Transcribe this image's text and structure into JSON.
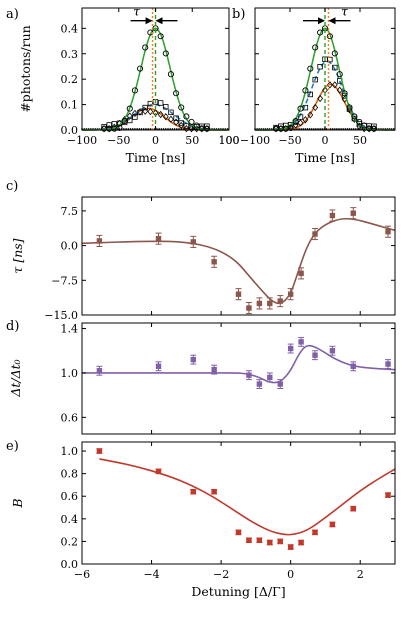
{
  "chart_data": [
    {
      "id": "a",
      "type": "line",
      "panel_label": "a)",
      "xlabel": "Time [ns]",
      "ylabel": "#photons/run",
      "xlim": [
        -100,
        100
      ],
      "ylim": [
        0,
        0.48
      ],
      "xticks": [
        -100,
        -50,
        0,
        50,
        100
      ],
      "yticks": [
        0.0,
        0.1,
        0.2,
        0.3,
        0.4
      ],
      "ytick_labels": [
        "0.0",
        "0.1",
        "0.2",
        "0.3",
        "0.4"
      ],
      "annotation": "τ",
      "vlines": [
        {
          "x": -4,
          "style": "dotted",
          "color": "#ff7f0e"
        },
        {
          "x": 0,
          "style": "dashed",
          "color": "#2ca02c"
        }
      ],
      "series": [
        {
          "marker": "o",
          "color": "#2ca02c",
          "fit": "gaussian",
          "amplitude": 0.4,
          "center": 0,
          "sigma": 20
        },
        {
          "marker": "s",
          "color": "#1f77b4",
          "fit": "gaussian",
          "amplitude": 0.1,
          "center": -2,
          "sigma": 27
        },
        {
          "marker": "D",
          "color": "#d95f02",
          "fit": "gaussian",
          "amplitude": 0.085,
          "center": -10,
          "sigma": 22
        }
      ]
    },
    {
      "id": "b",
      "type": "line",
      "panel_label": "b)",
      "xlabel": "Time [ns]",
      "ylabel": "",
      "xlim": [
        -100,
        100
      ],
      "ylim": [
        0,
        0.48
      ],
      "xticks": [
        -100,
        -50,
        0,
        50
      ],
      "yticks": [
        0.0,
        0.1,
        0.2,
        0.3,
        0.4
      ],
      "annotation": "τ",
      "vlines": [
        {
          "x": 0,
          "style": "dashed",
          "color": "#2ca02c"
        },
        {
          "x": 5,
          "style": "dotted",
          "color": "#ff7f0e"
        }
      ],
      "series": [
        {
          "marker": "o",
          "color": "#2ca02c",
          "fit": "gaussian",
          "amplitude": 0.4,
          "center": 0,
          "sigma": 20
        },
        {
          "marker": "s",
          "color": "#1f77b4",
          "fit": "gaussian",
          "amplitude": 0.27,
          "center": 3,
          "sigma": 22
        },
        {
          "marker": "D",
          "color": "#d95f02",
          "fit": "gaussian",
          "amplitude": 0.18,
          "center": 8,
          "sigma": 20
        }
      ]
    },
    {
      "id": "c",
      "type": "scatter",
      "panel_label": "c)",
      "ylabel": "τ [ns]",
      "xlim": [
        -6,
        3
      ],
      "ylim": [
        -15,
        10.5
      ],
      "yticks": [
        -15.0,
        -7.5,
        0.0,
        7.5
      ],
      "ytick_labels": [
        "−15.0",
        "−7.5",
        "0.0",
        "7.5"
      ],
      "color": "#8c564b",
      "x": [
        -5.5,
        -3.8,
        -2.8,
        -2.2,
        -1.5,
        -1.2,
        -0.9,
        -0.6,
        -0.3,
        0.0,
        0.3,
        0.7,
        1.2,
        1.8,
        2.8
      ],
      "y": [
        1.0,
        1.5,
        0.8,
        -3.5,
        -10.5,
        -13.5,
        -12.5,
        -12.5,
        -12.0,
        -10.5,
        -6.0,
        2.5,
        6.5,
        7.0,
        3.0
      ],
      "err": [
        1.2,
        1.2,
        1.2,
        1.2,
        1.2,
        1.2,
        1.2,
        1.2,
        1.2,
        1.2,
        1.2,
        1.2,
        1.2,
        1.2,
        1.2
      ],
      "fit": [
        [
          -6,
          0.5
        ],
        [
          -4,
          1.0
        ],
        [
          -3,
          0.8
        ],
        [
          -2.2,
          -0.5
        ],
        [
          -1.6,
          -3.0
        ],
        [
          -1.2,
          -6.5
        ],
        [
          -0.8,
          -10.0
        ],
        [
          -0.5,
          -12.3
        ],
        [
          -0.25,
          -12.6
        ],
        [
          0.0,
          -10.5
        ],
        [
          0.2,
          -6.0
        ],
        [
          0.45,
          -0.5
        ],
        [
          0.7,
          2.8
        ],
        [
          1.0,
          4.6
        ],
        [
          1.4,
          5.8
        ],
        [
          1.8,
          5.8
        ],
        [
          2.3,
          4.8
        ],
        [
          2.8,
          3.7
        ],
        [
          3,
          3.3
        ]
      ]
    },
    {
      "id": "d",
      "type": "scatter",
      "panel_label": "d)",
      "ylabel": "Δt/Δt₀",
      "xlim": [
        -6,
        3
      ],
      "ylim": [
        0.45,
        1.45
      ],
      "yticks": [
        0.6,
        1.0,
        1.4
      ],
      "ytick_labels": [
        "0.6",
        "1.0",
        "1.4"
      ],
      "color": "#8060a8",
      "x": [
        -5.5,
        -3.8,
        -2.8,
        -2.2,
        -1.2,
        -0.9,
        -0.6,
        -0.3,
        0.0,
        0.3,
        0.7,
        1.2,
        1.8,
        2.8
      ],
      "y": [
        1.02,
        1.06,
        1.12,
        1.03,
        0.98,
        0.9,
        0.96,
        0.9,
        1.22,
        1.28,
        1.16,
        1.2,
        1.06,
        1.08
      ],
      "err": [
        0.04,
        0.04,
        0.04,
        0.04,
        0.04,
        0.04,
        0.04,
        0.04,
        0.04,
        0.04,
        0.04,
        0.04,
        0.04,
        0.04
      ],
      "fit": [
        [
          -6,
          1.0
        ],
        [
          -4,
          1.0
        ],
        [
          -2,
          1.0
        ],
        [
          -1.5,
          1.0
        ],
        [
          -1.2,
          0.99
        ],
        [
          -0.9,
          0.96
        ],
        [
          -0.65,
          0.92
        ],
        [
          -0.45,
          0.91
        ],
        [
          -0.25,
          0.93
        ],
        [
          0.0,
          1.02
        ],
        [
          0.2,
          1.15
        ],
        [
          0.4,
          1.24
        ],
        [
          0.6,
          1.25
        ],
        [
          0.9,
          1.2
        ],
        [
          1.3,
          1.12
        ],
        [
          1.8,
          1.06
        ],
        [
          2.4,
          1.04
        ],
        [
          3,
          1.03
        ]
      ]
    },
    {
      "id": "e",
      "type": "scatter",
      "panel_label": "e)",
      "ylabel": "B",
      "xlabel": "Detuning [Δ/Γ]",
      "xlim": [
        -6,
        3
      ],
      "ylim": [
        0,
        1.08
      ],
      "xticks": [
        -6,
        -4,
        -2,
        0,
        2
      ],
      "yticks": [
        0.0,
        0.2,
        0.4,
        0.6,
        0.8,
        1.0
      ],
      "ytick_labels": [
        "0.0",
        "0.2",
        "0.4",
        "0.6",
        "0.8",
        "1.0"
      ],
      "color": "#c0392b",
      "x": [
        -5.5,
        -3.8,
        -2.8,
        -2.2,
        -1.5,
        -1.2,
        -0.9,
        -0.6,
        -0.3,
        0.0,
        0.3,
        0.7,
        1.2,
        1.8,
        2.8
      ],
      "y": [
        1.0,
        0.82,
        0.64,
        0.64,
        0.28,
        0.21,
        0.21,
        0.19,
        0.2,
        0.15,
        0.19,
        0.28,
        0.35,
        0.49,
        0.61
      ],
      "err": [
        0.02,
        0.02,
        0.02,
        0.02,
        0.02,
        0.02,
        0.02,
        0.02,
        0.02,
        0.02,
        0.02,
        0.02,
        0.02,
        0.02,
        0.02
      ],
      "fit": [
        [
          -5.5,
          0.93
        ],
        [
          -4.5,
          0.87
        ],
        [
          -3.5,
          0.78
        ],
        [
          -2.8,
          0.69
        ],
        [
          -2.2,
          0.59
        ],
        [
          -1.6,
          0.47
        ],
        [
          -1.1,
          0.37
        ],
        [
          -0.6,
          0.29
        ],
        [
          -0.2,
          0.26
        ],
        [
          0.1,
          0.26
        ],
        [
          0.5,
          0.3
        ],
        [
          1.0,
          0.41
        ],
        [
          1.5,
          0.53
        ],
        [
          2.0,
          0.65
        ],
        [
          2.5,
          0.75
        ],
        [
          3.0,
          0.84
        ]
      ]
    }
  ]
}
